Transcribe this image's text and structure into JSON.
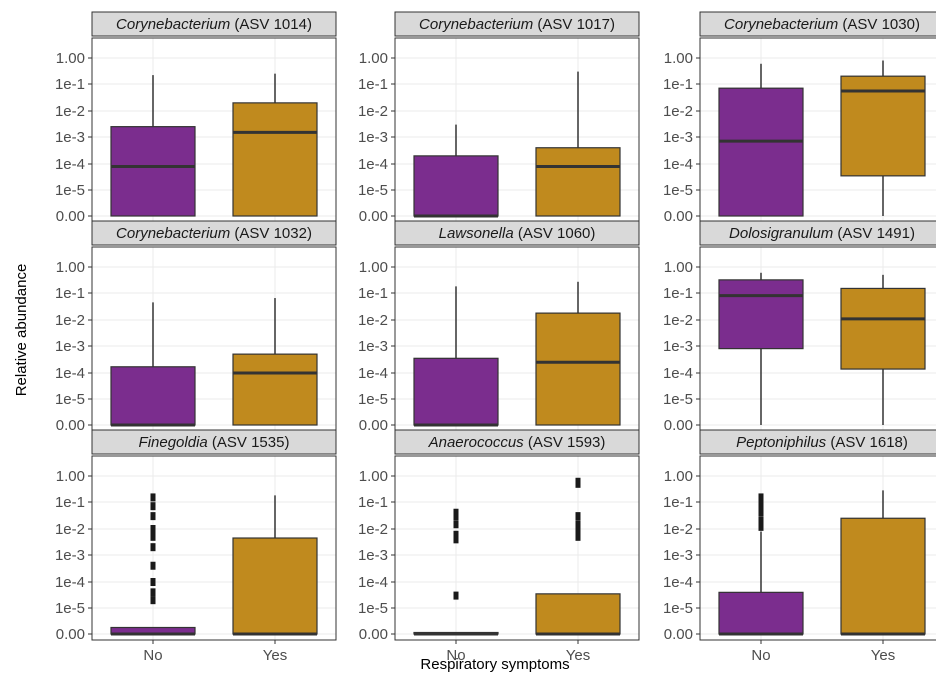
{
  "chart_data": {
    "type": "boxplot",
    "xlabel": "Respiratory symptoms",
    "ylabel": "Relative abundance",
    "categories": [
      "No",
      "Yes"
    ],
    "y_scale": "pseudo-log10",
    "y_ticks": [
      "0.00",
      "1e-5",
      "1e-4",
      "1e-3",
      "1e-2",
      "1e-1",
      "1.00"
    ],
    "colors": {
      "No": "#7b2d8e",
      "Yes": "#c08a1e"
    },
    "panels": [
      {
        "genus": "Corynebacterium",
        "asv": "(ASV 1014)",
        "boxes": [
          {
            "group": "No",
            "whisker_low": 0,
            "q1": 0,
            "median": 8e-05,
            "q3": 0.0025,
            "whisker_high": 0.22,
            "outliers": []
          },
          {
            "group": "Yes",
            "whisker_low": 0,
            "q1": 0,
            "median": 0.0015,
            "q3": 0.02,
            "whisker_high": 0.25,
            "outliers": []
          }
        ]
      },
      {
        "genus": "Corynebacterium",
        "asv": "(ASV 1017)",
        "boxes": [
          {
            "group": "No",
            "whisker_low": 0,
            "q1": 0,
            "median": 0,
            "q3": 0.0002,
            "whisker_high": 0.003,
            "outliers": []
          },
          {
            "group": "Yes",
            "whisker_low": 0,
            "q1": 0,
            "median": 8e-05,
            "q3": 0.0004,
            "whisker_high": 0.3,
            "outliers": []
          }
        ]
      },
      {
        "genus": "Corynebacterium",
        "asv": "(ASV 1030)",
        "boxes": [
          {
            "group": "No",
            "whisker_low": 0,
            "q1": 0,
            "median": 0.0007,
            "q3": 0.07,
            "whisker_high": 0.6,
            "outliers": []
          },
          {
            "group": "Yes",
            "whisker_low": 0,
            "q1": 3.5e-05,
            "median": 0.055,
            "q3": 0.2,
            "whisker_high": 0.8,
            "outliers": []
          }
        ]
      },
      {
        "genus": "Corynebacterium",
        "asv": "(ASV 1032)",
        "boxes": [
          {
            "group": "No",
            "whisker_low": 0,
            "q1": 0,
            "median": 0,
            "q3": 0.00017,
            "whisker_high": 0.045,
            "outliers": []
          },
          {
            "group": "Yes",
            "whisker_low": 0,
            "q1": 0,
            "median": 0.0001,
            "q3": 0.0005,
            "whisker_high": 0.065,
            "outliers": []
          }
        ]
      },
      {
        "genus": "Lawsonella",
        "asv": "(ASV 1060)",
        "boxes": [
          {
            "group": "No",
            "whisker_low": 0,
            "q1": 0,
            "median": 0,
            "q3": 0.00035,
            "whisker_high": 0.18,
            "outliers": []
          },
          {
            "group": "Yes",
            "whisker_low": 0,
            "q1": 0,
            "median": 0.00025,
            "q3": 0.018,
            "whisker_high": 0.27,
            "outliers": []
          }
        ]
      },
      {
        "genus": "Dolosigranulum",
        "asv": "(ASV 1491)",
        "boxes": [
          {
            "group": "No",
            "whisker_low": 0,
            "q1": 0.0008,
            "median": 0.08,
            "q3": 0.32,
            "whisker_high": 0.6,
            "outliers": []
          },
          {
            "group": "Yes",
            "whisker_low": 0,
            "q1": 0.00014,
            "median": 0.011,
            "q3": 0.15,
            "whisker_high": 0.5,
            "outliers": []
          }
        ]
      },
      {
        "genus": "Finegoldia",
        "asv": "(ASV 1535)",
        "boxes": [
          {
            "group": "No",
            "whisker_low": 0,
            "q1": 0,
            "median": 0,
            "q3": 2.5e-06,
            "whisker_high": 2.5e-06,
            "outliers": [
              2e-05,
              4e-05,
              0.0001,
              0.0004,
              0.002,
              0.005,
              0.01,
              0.03,
              0.07,
              0.15
            ]
          },
          {
            "group": "Yes",
            "whisker_low": 0,
            "q1": 0,
            "median": 0,
            "q3": 0.0045,
            "whisker_high": 0.18,
            "outliers": []
          }
        ]
      },
      {
        "genus": "Anaerococcus",
        "asv": "(ASV 1593)",
        "boxes": [
          {
            "group": "No",
            "whisker_low": 0,
            "q1": 0,
            "median": 0,
            "q3": 0,
            "whisker_high": 0,
            "outliers": [
              3e-05,
              0.004,
              0.006,
              0.015,
              0.03,
              0.04
            ]
          },
          {
            "group": "Yes",
            "whisker_low": 0,
            "q1": 0,
            "median": 0,
            "q3": 3.5e-05,
            "whisker_high": 3.5e-05,
            "outliers": [
              0.005,
              0.008,
              0.015,
              0.03,
              0.5,
              0.6
            ]
          }
        ]
      },
      {
        "genus": "Peptoniphilus",
        "asv": "(ASV 1618)",
        "boxes": [
          {
            "group": "No",
            "whisker_low": 0,
            "q1": 0,
            "median": 0,
            "q3": 4e-05,
            "whisker_high": 0.008,
            "outliers": [
              0.012,
              0.02,
              0.04,
              0.07,
              0.1,
              0.15
            ]
          },
          {
            "group": "Yes",
            "whisker_low": 0,
            "q1": 0,
            "median": 0,
            "q3": 0.025,
            "whisker_high": 0.28,
            "outliers": []
          }
        ]
      }
    ]
  }
}
